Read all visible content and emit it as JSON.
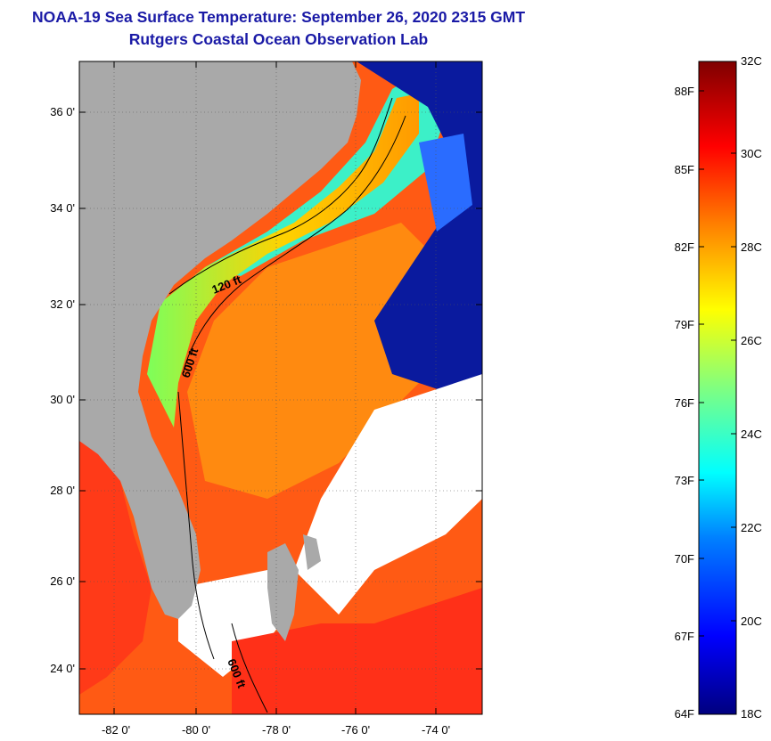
{
  "header": {
    "title": "NOAA-19 Sea Surface Temperature:  September 26, 2020 2315 GMT",
    "subtitle": "Rutgers Coastal Ocean Observation Lab"
  },
  "map": {
    "lat_labels": [
      "36 0'",
      "34 0'",
      "32 0'",
      "30 0'",
      "28 0'",
      "26 0'",
      "24 0'"
    ],
    "lon_labels": [
      "-82 0'",
      "-80 0'",
      "-78 0'",
      "-76 0'",
      "-74 0'"
    ],
    "contours": [
      {
        "label": "120 ft"
      },
      {
        "label": "600 ft"
      },
      {
        "label": "600 ft"
      }
    ],
    "colors": {
      "land": "#a9a9a9",
      "cloud": "#ffffff",
      "warm": "#ff3a14",
      "cool": "#0a1a9e"
    }
  },
  "colorbar": {
    "min_c": 18,
    "max_c": 32,
    "celsius_labels": [
      "32C",
      "30C",
      "28C",
      "26C",
      "24C",
      "22C",
      "20C",
      "18C"
    ],
    "fahrenheit_labels": [
      "88F",
      "85F",
      "82F",
      "79F",
      "76F",
      "73F",
      "70F",
      "67F",
      "64F"
    ]
  }
}
